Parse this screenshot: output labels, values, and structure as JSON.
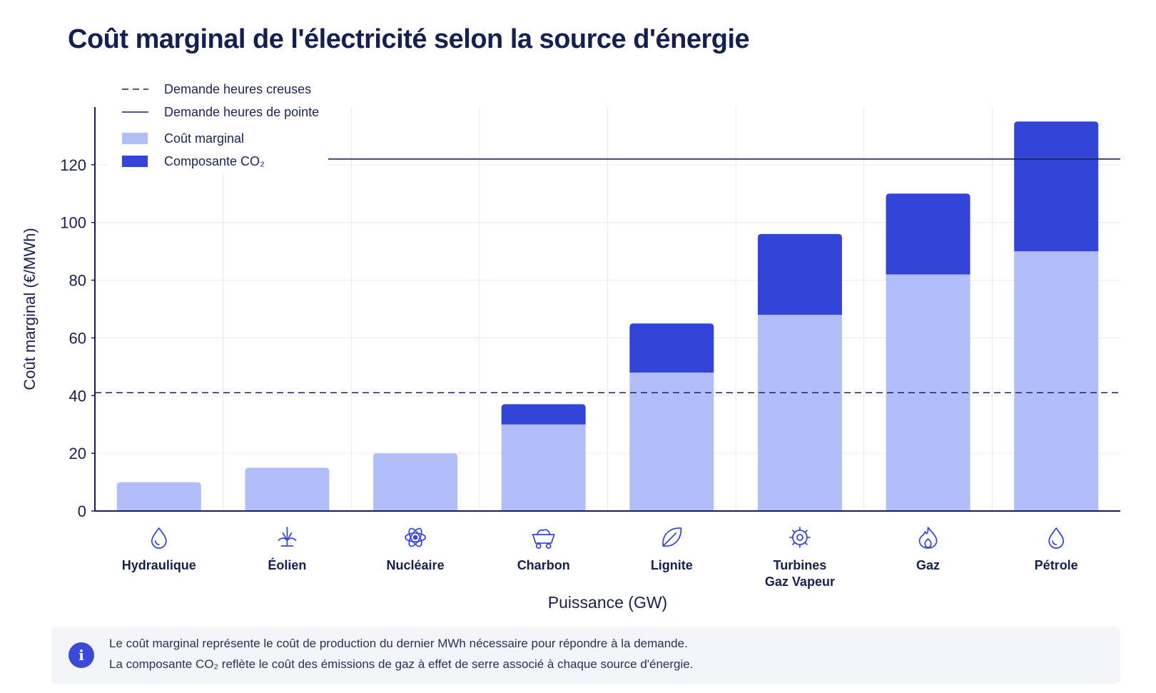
{
  "title": "Coût marginal de l'électricité selon la source d'énergie",
  "colors": {
    "marginal_cost": "#b1bef9",
    "co2_component": "#3344d8",
    "axis": "#1a1f4e",
    "grid": "#e6e9f5",
    "info_accent": "#3a4ad6"
  },
  "chart_data": {
    "type": "bar",
    "stacked": true,
    "xlabel": "Puissance (GW)",
    "ylabel": "Coût marginal (€/MWh)",
    "ylim": [
      0,
      140
    ],
    "yticks": [
      0,
      20,
      40,
      60,
      80,
      100,
      120
    ],
    "grid": true,
    "legend_position": "top-left",
    "categories": [
      {
        "label": "Hydraulique",
        "icon": "water-drop-icon"
      },
      {
        "label": "Éolien",
        "icon": "wind-turbine-icon"
      },
      {
        "label": "Nucléaire",
        "icon": "atom-icon"
      },
      {
        "label": "Charbon",
        "icon": "mine-cart-icon"
      },
      {
        "label": "Lignite",
        "icon": "leaf-icon"
      },
      {
        "label": "Turbines Gaz Vapeur",
        "icon": "turbine-gear-icon"
      },
      {
        "label": "Gaz",
        "icon": "flame-icon"
      },
      {
        "label": "Pétrole",
        "icon": "oil-drop-icon"
      }
    ],
    "series": [
      {
        "name": "Coût marginal",
        "color": "#b1bef9",
        "values": [
          10,
          15,
          20,
          30,
          48,
          68,
          82,
          90
        ]
      },
      {
        "name": "Composante CO₂",
        "color": "#3344d8",
        "values": [
          0,
          0,
          0,
          7,
          17,
          28,
          28,
          45
        ]
      }
    ],
    "reference_lines": [
      {
        "name": "Demande heures creuses",
        "value": 41,
        "style": "dashed"
      },
      {
        "name": "Demande heures de pointe",
        "value": 122,
        "style": "solid"
      }
    ]
  },
  "info": {
    "line1": "Le coût marginal représente le coût de production du dernier MWh nécessaire pour répondre à la demande.",
    "line2": "La composante CO₂ reflète le coût des émissions de gaz à effet de serre associé à chaque source d'énergie."
  }
}
